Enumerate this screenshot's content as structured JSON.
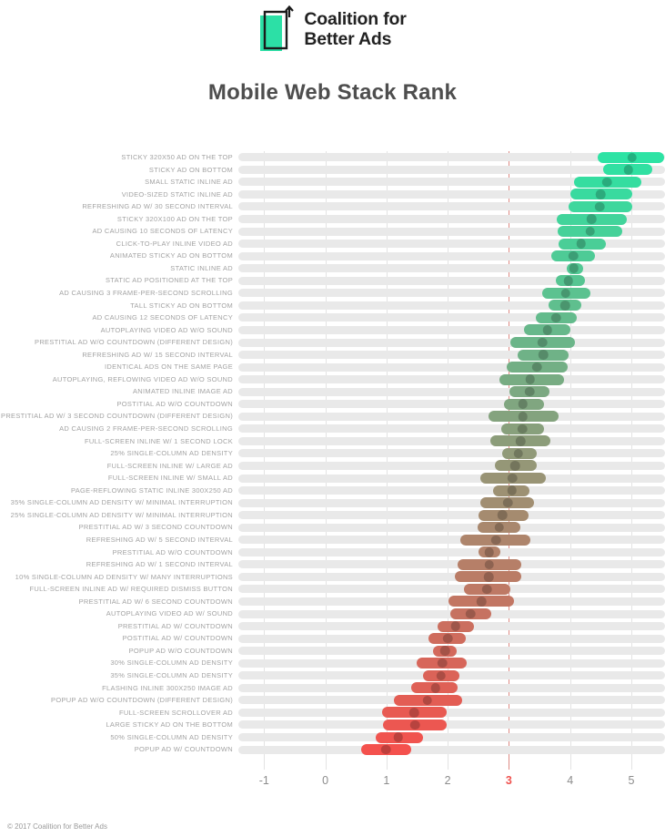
{
  "header": {
    "brand_line1": "Coalition for",
    "brand_line2": "Better Ads",
    "logo_green": "#2ce0a6",
    "logo_outline": "#1b1b1b"
  },
  "page_title": "Mobile Web Stack Rank",
  "footer": {
    "copyright": "© 2017 Coalition for Better Ads"
  },
  "chart_data": {
    "type": "bar",
    "subtype": "horizontal-range-with-mean-dot",
    "title": "Mobile Web Stack Rank",
    "xlabel": "",
    "ylabel": "",
    "xlim": [
      -1.42,
      5.55
    ],
    "x_ticks": [
      -1,
      0,
      1,
      2,
      3,
      4,
      5
    ],
    "highlight_tick": 3,
    "grid": true,
    "legend": false,
    "track_color": "#e9e9e9",
    "grid_color": "#e3e3e3",
    "highlight_line_color": "#dd8a84",
    "highlight_tick_color": "#ef5350",
    "color_ramp": {
      "start": "#2de3a4",
      "end": "#f4514d"
    },
    "rows": [
      {
        "label": "STICKY 320X50 AD ON THE TOP",
        "low": 4.45,
        "high": 5.53,
        "mean": 5.01
      },
      {
        "label": "STICKY AD ON BOTTOM",
        "low": 4.54,
        "high": 5.34,
        "mean": 4.95
      },
      {
        "label": "SMALL STATIC INLINE AD",
        "low": 4.06,
        "high": 5.16,
        "mean": 4.6
      },
      {
        "label": "VIDEO-SIZED STATIC INLINE AD",
        "low": 4.0,
        "high": 5.02,
        "mean": 4.5
      },
      {
        "label": "REFRESHING AD W/ 30 SECOND INTERVAL",
        "low": 3.98,
        "high": 5.01,
        "mean": 4.48
      },
      {
        "label": "STICKY 320X100 AD ON THE TOP",
        "low": 3.78,
        "high": 4.92,
        "mean": 4.35
      },
      {
        "label": "AD CAUSING 10 SECONDS OF LATENCY",
        "low": 3.8,
        "high": 4.85,
        "mean": 4.33
      },
      {
        "label": "CLICK-TO-PLAY INLINE VIDEO AD",
        "low": 3.81,
        "high": 4.59,
        "mean": 4.18
      },
      {
        "label": "ANIMATED STICKY AD ON BOTTOM",
        "low": 3.69,
        "high": 4.4,
        "mean": 4.05
      },
      {
        "label": "STATIC INLINE AD",
        "low": 3.95,
        "high": 4.22,
        "mean": 4.06
      },
      {
        "label": "STATIC AD POSITIONED AT THE TOP",
        "low": 3.77,
        "high": 4.24,
        "mean": 3.97
      },
      {
        "label": "AD CAUSING 3 FRAME-PER-SECOND SCROLLING",
        "low": 3.54,
        "high": 4.33,
        "mean": 3.93
      },
      {
        "label": "TALL STICKY AD ON BOTTOM",
        "low": 3.65,
        "high": 4.18,
        "mean": 3.92
      },
      {
        "label": "AD CAUSING 12 SECONDS OF LATENCY",
        "low": 3.44,
        "high": 4.11,
        "mean": 3.77
      },
      {
        "label": "AUTOPLAYING VIDEO AD W/O SOUND",
        "low": 3.24,
        "high": 4.01,
        "mean": 3.63
      },
      {
        "label": "PRESTITIAL AD W/O COUNTDOWN (DIFFERENT DESIGN)",
        "low": 3.02,
        "high": 4.08,
        "mean": 3.55
      },
      {
        "label": "REFRESHING AD W/ 15 SECOND INTERVAL",
        "low": 3.14,
        "high": 3.97,
        "mean": 3.56
      },
      {
        "label": "IDENTICAL ADS ON THE SAME PAGE",
        "low": 2.97,
        "high": 3.96,
        "mean": 3.46
      },
      {
        "label": "AUTOPLAYING, REFLOWING VIDEO AD W/O SOUND",
        "low": 2.84,
        "high": 3.9,
        "mean": 3.35
      },
      {
        "label": "ANIMATED INLINE IMAGE AD",
        "low": 3.01,
        "high": 3.67,
        "mean": 3.34
      },
      {
        "label": "POSTITIAL AD W/O COUNTDOWN",
        "low": 2.92,
        "high": 3.58,
        "mean": 3.23
      },
      {
        "label": "PRESTITIAL AD W/ 3 SECOND COUNTDOWN (DIFFERENT DESIGN)",
        "low": 2.66,
        "high": 3.81,
        "mean": 3.23
      },
      {
        "label": "AD CAUSING 2 FRAME-PER-SECOND SCROLLING",
        "low": 2.88,
        "high": 3.58,
        "mean": 3.22
      },
      {
        "label": "FULL-SCREEN INLINE W/ 1 SECOND LOCK",
        "low": 2.69,
        "high": 3.68,
        "mean": 3.19
      },
      {
        "label": "25% SINGLE-COLUMN AD DENSITY",
        "low": 2.89,
        "high": 3.46,
        "mean": 3.15
      },
      {
        "label": "FULL-SCREEN INLINE W/ LARGE AD",
        "low": 2.77,
        "high": 3.45,
        "mean": 3.1
      },
      {
        "label": "FULL-SCREEN INLINE W/ SMALL AD",
        "low": 2.54,
        "high": 3.61,
        "mean": 3.06
      },
      {
        "label": "PAGE-REFLOWING STATIC INLINE 300X250 AD",
        "low": 2.74,
        "high": 3.34,
        "mean": 3.05
      },
      {
        "label": "35% SINGLE-COLUMN AD DENSITY W/ MINIMAL INTERRUPTION",
        "low": 2.54,
        "high": 3.41,
        "mean": 2.98
      },
      {
        "label": "25% SINGLE-COLUMN AD DENSITY W/ MINIMAL INTERRUPTION",
        "low": 2.51,
        "high": 3.32,
        "mean": 2.89
      },
      {
        "label": "PRESTITIAL AD W/ 3 SECOND COUNTDOWN",
        "low": 2.49,
        "high": 3.19,
        "mean": 2.84
      },
      {
        "label": "REFRESHING AD W/ 5 SECOND INTERVAL",
        "low": 2.2,
        "high": 3.35,
        "mean": 2.79
      },
      {
        "label": "PRESTITIAL AD W/O COUNTDOWN",
        "low": 2.51,
        "high": 2.86,
        "mean": 2.68
      },
      {
        "label": "REFRESHING AD W/ 1 SECOND INTERVAL",
        "low": 2.16,
        "high": 3.2,
        "mean": 2.68
      },
      {
        "label": "10% SINGLE-COLUMN AD DENSITY W/ MANY INTERRUPTIONS",
        "low": 2.12,
        "high": 3.2,
        "mean": 2.67
      },
      {
        "label": "FULL-SCREEN INLINE AD W/ REQUIRED DISMISS BUTTON",
        "low": 2.27,
        "high": 3.02,
        "mean": 2.64
      },
      {
        "label": "PRESTITIAL AD W/ 6 SECOND COUNTDOWN",
        "low": 2.01,
        "high": 3.09,
        "mean": 2.55
      },
      {
        "label": "AUTOPLAYING VIDEO AD W/ SOUND",
        "low": 2.04,
        "high": 2.71,
        "mean": 2.37
      },
      {
        "label": "PRESTITIAL AD W/ COUNTDOWN",
        "low": 1.84,
        "high": 2.43,
        "mean": 2.13
      },
      {
        "label": "POSTITIAL AD W/ COUNTDOWN",
        "low": 1.69,
        "high": 2.3,
        "mean": 2.0
      },
      {
        "label": "POPUP AD W/O COUNTDOWN",
        "low": 1.76,
        "high": 2.14,
        "mean": 1.96
      },
      {
        "label": "30% SINGLE-COLUMN AD DENSITY",
        "low": 1.49,
        "high": 2.31,
        "mean": 1.91
      },
      {
        "label": "35% SINGLE-COLUMN AD DENSITY",
        "low": 1.59,
        "high": 2.19,
        "mean": 1.89
      },
      {
        "label": "FLASHING INLINE 300X250 IMAGE AD",
        "low": 1.41,
        "high": 2.16,
        "mean": 1.8
      },
      {
        "label": "POPUP AD W/O COUNTDOWN (DIFFERENT DESIGN)",
        "low": 1.12,
        "high": 2.24,
        "mean": 1.67
      },
      {
        "label": "FULL-SCREEN SCROLLOVER AD",
        "low": 0.93,
        "high": 1.98,
        "mean": 1.45
      },
      {
        "label": "LARGE STICKY AD ON THE BOTTOM",
        "low": 0.95,
        "high": 1.98,
        "mean": 1.47
      },
      {
        "label": "50% SINGLE-COLUMN AD DENSITY",
        "low": 0.83,
        "high": 1.59,
        "mean": 1.19
      },
      {
        "label": "POPUP AD W/ COUNTDOWN",
        "low": 0.58,
        "high": 1.41,
        "mean": 0.99
      }
    ]
  }
}
